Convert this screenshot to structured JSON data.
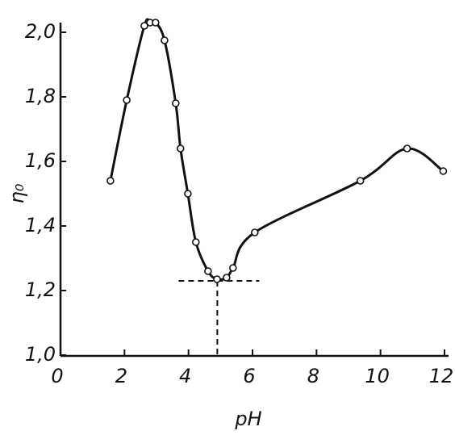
{
  "chart_data": {
    "type": "scatter",
    "x_label": "pH",
    "y_label": "η₀",
    "x": [
      1.56,
      2.07,
      2.62,
      2.8,
      2.97,
      3.25,
      3.6,
      3.75,
      3.98,
      4.23,
      4.61,
      4.89,
      5.19,
      5.39,
      6.07,
      9.37,
      10.83,
      11.96
    ],
    "values": [
      1.54,
      1.79,
      2.02,
      2.03,
      2.03,
      1.975,
      1.78,
      1.64,
      1.5,
      1.35,
      1.26,
      1.235,
      1.24,
      1.27,
      1.38,
      1.54,
      1.64,
      1.57
    ],
    "reference_point": {
      "x": 4.9,
      "y": 1.23
    },
    "xlim": [
      0,
      12
    ],
    "xticks": [
      0,
      2,
      4,
      6,
      8,
      10,
      12
    ],
    "ylim": [
      1.0,
      2.0
    ],
    "yticks": [
      {
        "value": 1.0,
        "label": "1,0"
      },
      {
        "value": 1.2,
        "label": "1,2"
      },
      {
        "value": 1.4,
        "label": "1,4"
      },
      {
        "value": 1.6,
        "label": "1,6"
      },
      {
        "value": 1.8,
        "label": "1,8"
      },
      {
        "value": 2.0,
        "label": "2,0"
      }
    ],
    "color": "#111"
  }
}
